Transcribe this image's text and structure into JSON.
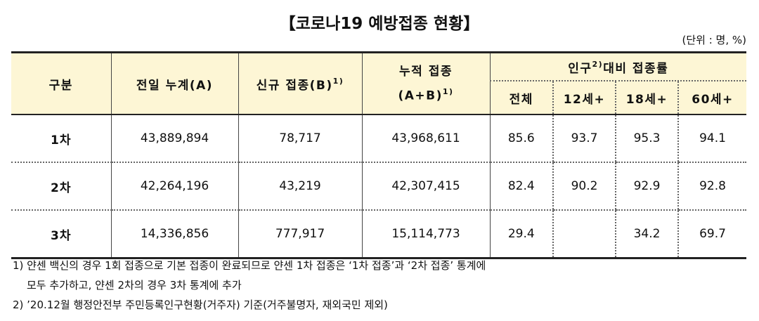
{
  "title": "【코로나19 예방접종 현황】",
  "unit": "(단위 : 명, %)",
  "header": {
    "category": "구분",
    "prev_total": "전일 누계(A)",
    "new": "신규 접종(B)",
    "new_sup": "1)",
    "cumulative_line1": "누적 접종",
    "cumulative_line2": "(A+B)",
    "cumulative_sup": "1)",
    "rate_pre": "인구",
    "rate_sup": "2)",
    "rate_post": "대비 접종률",
    "sub": [
      "전체",
      "12세+",
      "18세+",
      "60세+"
    ]
  },
  "rows": [
    {
      "label": "1차",
      "prev": "43,889,894",
      "new": "78,717",
      "cum": "43,968,611",
      "all": "85.6",
      "a12": "93.7",
      "a18": "95.3",
      "a60": "94.1"
    },
    {
      "label": "2차",
      "prev": "42,264,196",
      "new": "43,219",
      "cum": "42,307,415",
      "all": "82.4",
      "a12": "90.2",
      "a18": "92.9",
      "a60": "92.8"
    },
    {
      "label": "3차",
      "prev": "14,336,856",
      "new": "777,917",
      "cum": "15,114,773",
      "all": "29.4",
      "a12": "",
      "a18": "34.2",
      "a60": "69.7"
    }
  ],
  "notes": [
    "1) 얀센 백신의 경우 1회 접종으로 기본 접종이 완료되므로 얀센 1차 접종은 ‘1차 접종’과 ‘2차 접종’ 통계에",
    "모두 추가하고, 얀센 2차의 경우 3차 통계에 추가",
    "2) ’20.12월 행정안전부 주민등록인구현황(거주자) 기준(거주불명자, 재외국민 제외)"
  ]
}
